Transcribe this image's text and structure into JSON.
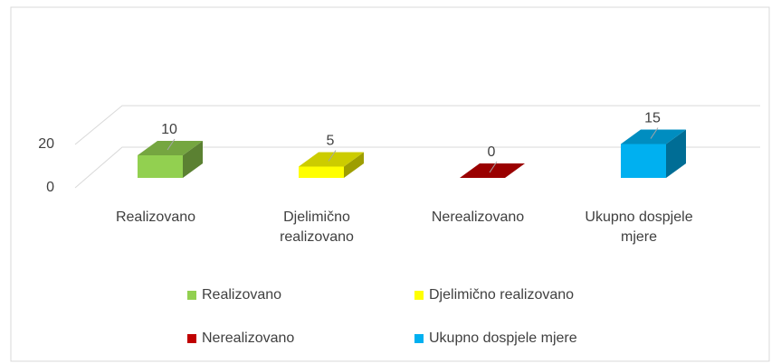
{
  "chart_data": {
    "type": "bar3d",
    "categories": [
      "Realizovano",
      "Djelimično realizovano",
      "Nerealizovano",
      "Ukupno dospjele mjere"
    ],
    "values": [
      10,
      5,
      0,
      15
    ],
    "colors": [
      "#92d050",
      "#ffff00",
      "#c00000",
      "#00b0f0"
    ],
    "ylim": [
      0,
      20
    ],
    "yticks": [
      0,
      20
    ],
    "grid": true,
    "legend": "bottom"
  }
}
